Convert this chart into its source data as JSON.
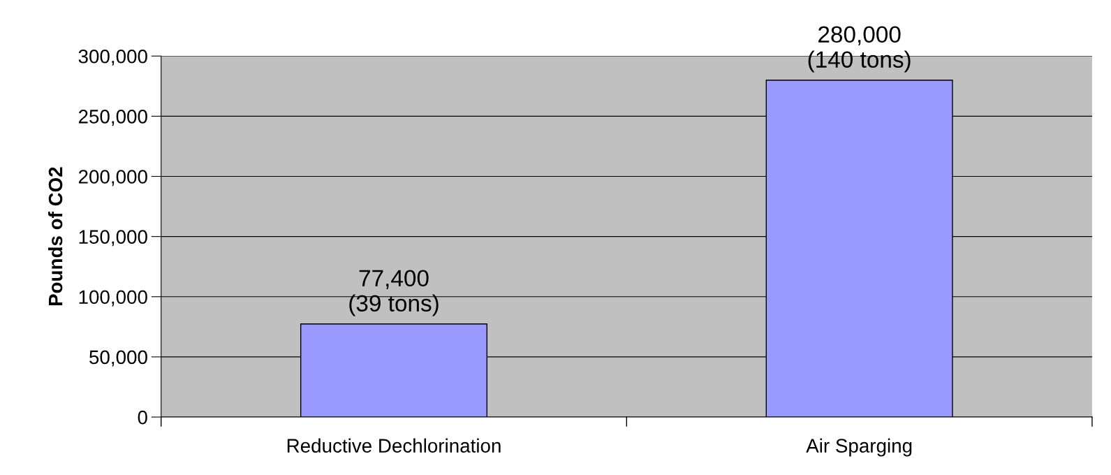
{
  "chart_data": {
    "type": "bar",
    "ylabel": "Pounds of CO2",
    "categories": [
      "Reductive Dechlorination",
      "Air Sparging"
    ],
    "values": [
      77400,
      280000
    ],
    "value_labels": [
      "77,400\n(39 tons)",
      "280,000\n(140 tons)"
    ],
    "color": "#9999ff",
    "ylim": [
      0,
      300000
    ],
    "yticks": [
      {
        "value": 0,
        "label": "0"
      },
      {
        "value": 50000,
        "label": "50,000"
      },
      {
        "value": 100000,
        "label": "100,000"
      },
      {
        "value": 150000,
        "label": "150,000"
      },
      {
        "value": 200000,
        "label": "200,000"
      },
      {
        "value": 250000,
        "label": "250,000"
      },
      {
        "value": 300000,
        "label": "300,000"
      }
    ],
    "grid": "y"
  }
}
